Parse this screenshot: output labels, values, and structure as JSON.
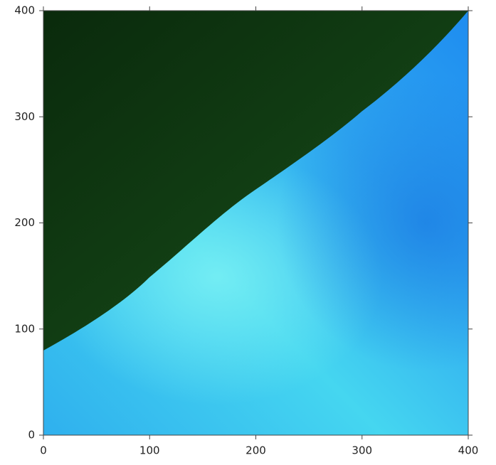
{
  "chart_data": {
    "type": "image",
    "xlim": [
      0,
      400
    ],
    "ylim": [
      0,
      400
    ],
    "xticks": [
      0,
      100,
      200,
      300,
      400
    ],
    "yticks": [
      0,
      100,
      200,
      300,
      400
    ]
  }
}
